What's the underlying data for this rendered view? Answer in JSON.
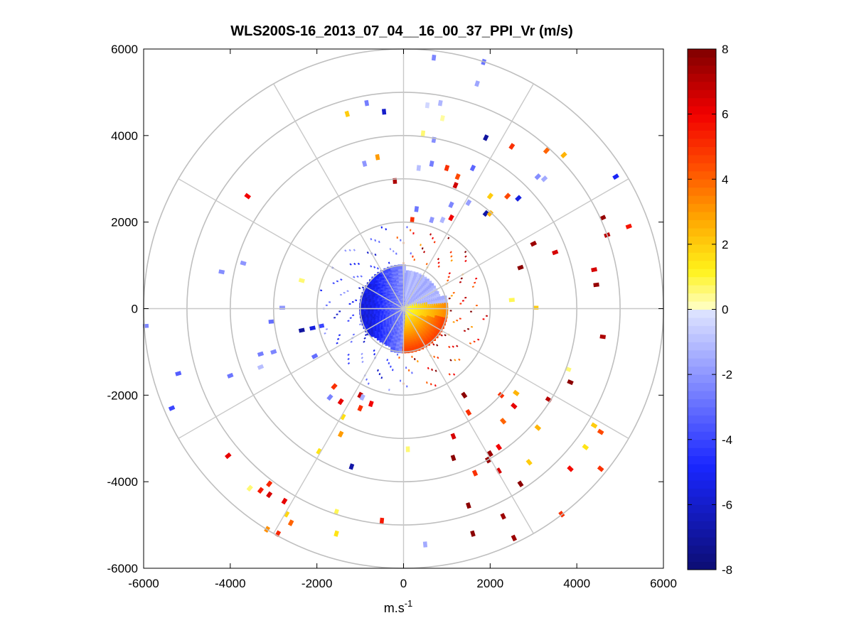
{
  "chart_data": {
    "type": "polar-ppi",
    "title": "WLS200S-16_2013_07_04__16_00_37_PPI_Vr (m/s)",
    "xlabel": "m.s",
    "xlabel_superscript": "-1",
    "xlim": [
      -6000,
      6000
    ],
    "ylim": [
      -6000,
      6000
    ],
    "xticks": [
      -6000,
      -4000,
      -2000,
      0,
      2000,
      4000,
      6000
    ],
    "yticks": [
      -6000,
      -4000,
      -2000,
      0,
      2000,
      4000,
      6000
    ],
    "xtick_labels": [
      "-6000",
      "-4000",
      "-2000",
      "0",
      "2000",
      "4000",
      "6000"
    ],
    "ytick_labels": [
      "-6000",
      "-4000",
      "-2000",
      "0",
      "2000",
      "4000",
      "6000"
    ],
    "range_rings": [
      1000,
      2000,
      3000,
      4000,
      5000,
      6000
    ],
    "spoke_angles_deg": [
      0,
      30,
      60,
      90,
      120,
      150,
      180,
      210,
      240,
      270,
      300,
      330
    ],
    "colorbar": {
      "min": -8,
      "max": 8,
      "ticks": [
        -8,
        -6,
        -4,
        -2,
        0,
        2,
        4,
        6,
        8
      ],
      "tick_labels": [
        "-8",
        "-6",
        "-4",
        "-2",
        "0",
        "2",
        "4",
        "6",
        "8"
      ]
    },
    "segments": [
      {
        "x": 700,
        "y": 5800,
        "v": -2.4
      },
      {
        "x": 1850,
        "y": 5700,
        "v": -2.8
      },
      {
        "x": 1700,
        "y": 5200,
        "v": -1.6
      },
      {
        "x": 850,
        "y": 4750,
        "v": -1.2
      },
      {
        "x": 550,
        "y": 4700,
        "v": -0.4
      },
      {
        "x": 900,
        "y": 4400,
        "v": 0.3
      },
      {
        "x": 450,
        "y": 4050,
        "v": 0.6
      },
      {
        "x": 700,
        "y": 3900,
        "v": -2.2
      },
      {
        "x": 1900,
        "y": 3950,
        "v": -7.0
      },
      {
        "x": 2500,
        "y": 3750,
        "v": 5.0
      },
      {
        "x": 3300,
        "y": 3650,
        "v": 4.0
      },
      {
        "x": 3700,
        "y": 3550,
        "v": 2.5
      },
      {
        "x": 4900,
        "y": 3050,
        "v": -5.0
      },
      {
        "x": 3100,
        "y": 3050,
        "v": -2.2
      },
      {
        "x": 3250,
        "y": 3000,
        "v": -1.5
      },
      {
        "x": 650,
        "y": 3350,
        "v": -2.6
      },
      {
        "x": 350,
        "y": 3250,
        "v": -1.0
      },
      {
        "x": 1000,
        "y": 3250,
        "v": 5.0
      },
      {
        "x": 1600,
        "y": 3250,
        "v": -3.2
      },
      {
        "x": 1250,
        "y": 3050,
        "v": 4.5
      },
      {
        "x": 1200,
        "y": 2850,
        "v": 6.6
      },
      {
        "x": 2000,
        "y": 2600,
        "v": 2.0
      },
      {
        "x": 2400,
        "y": 2600,
        "v": 4.5
      },
      {
        "x": 2650,
        "y": 2550,
        "v": -5.5
      },
      {
        "x": 1500,
        "y": 2450,
        "v": -1.8
      },
      {
        "x": 1900,
        "y": 2200,
        "v": -6.8
      },
      {
        "x": 2000,
        "y": 2200,
        "v": 2.5
      },
      {
        "x": 1100,
        "y": 2100,
        "v": 6.0
      },
      {
        "x": 650,
        "y": 2050,
        "v": -2.0
      },
      {
        "x": 300,
        "y": 2300,
        "v": -2.8
      },
      {
        "x": 200,
        "y": 2050,
        "v": 5.0
      },
      {
        "x": 900,
        "y": 2050,
        "v": -1.2
      },
      {
        "x": 1100,
        "y": 2400,
        "v": -2.4
      },
      {
        "x": -200,
        "y": 2950,
        "v": 7.2
      },
      {
        "x": -600,
        "y": 3500,
        "v": 3.0
      },
      {
        "x": -1300,
        "y": 4500,
        "v": 2.0
      },
      {
        "x": -850,
        "y": 4750,
        "v": -2.6
      },
      {
        "x": -450,
        "y": 4550,
        "v": -6.0
      },
      {
        "x": -900,
        "y": 3350,
        "v": -2.0
      },
      {
        "x": -3600,
        "y": 2600,
        "v": 6.0
      },
      {
        "x": 4600,
        "y": 2100,
        "v": 7.6
      },
      {
        "x": 5200,
        "y": 1900,
        "v": 5.6
      },
      {
        "x": 4700,
        "y": 1700,
        "v": 7.0
      },
      {
        "x": 3000,
        "y": 1500,
        "v": 7.5
      },
      {
        "x": 3500,
        "y": 1300,
        "v": 6.5
      },
      {
        "x": 2700,
        "y": 950,
        "v": 7.8
      },
      {
        "x": 4400,
        "y": 900,
        "v": 6.5
      },
      {
        "x": 4450,
        "y": 550,
        "v": 7.6
      },
      {
        "x": 2500,
        "y": 200,
        "v": 0.8
      },
      {
        "x": 3050,
        "y": 20,
        "v": 2.0
      },
      {
        "x": 4600,
        "y": -650,
        "v": 7.2
      },
      {
        "x": 3800,
        "y": -1400,
        "v": 0.6
      },
      {
        "x": 3850,
        "y": -1700,
        "v": 7.8
      },
      {
        "x": 3350,
        "y": -2100,
        "v": 7.0
      },
      {
        "x": 2600,
        "y": -1950,
        "v": 2.5
      },
      {
        "x": 2550,
        "y": -2250,
        "v": 6.2
      },
      {
        "x": 2250,
        "y": -2000,
        "v": 5.0
      },
      {
        "x": 1400,
        "y": -2000,
        "v": 7.8
      },
      {
        "x": 1500,
        "y": -2400,
        "v": 5.0
      },
      {
        "x": 2300,
        "y": -2600,
        "v": 4.0
      },
      {
        "x": 3100,
        "y": -2750,
        "v": 2.5
      },
      {
        "x": 4400,
        "y": -2700,
        "v": 2.0
      },
      {
        "x": 4550,
        "y": -2850,
        "v": 4.5
      },
      {
        "x": 4200,
        "y": -3200,
        "v": 1.5
      },
      {
        "x": 4550,
        "y": -3700,
        "v": 5.0
      },
      {
        "x": 3850,
        "y": -3700,
        "v": 5.8
      },
      {
        "x": 2900,
        "y": -3550,
        "v": 2.0
      },
      {
        "x": 2200,
        "y": -3200,
        "v": 6.0
      },
      {
        "x": 2000,
        "y": -3350,
        "v": 7.5
      },
      {
        "x": 1950,
        "y": -3500,
        "v": 7.6
      },
      {
        "x": 1150,
        "y": -3450,
        "v": 7.8
      },
      {
        "x": 1650,
        "y": -3800,
        "v": 5.0
      },
      {
        "x": 2200,
        "y": -3750,
        "v": 6.5
      },
      {
        "x": 2700,
        "y": -4050,
        "v": 7.8
      },
      {
        "x": 1500,
        "y": -4550,
        "v": 7.8
      },
      {
        "x": 2300,
        "y": -4800,
        "v": 7.5
      },
      {
        "x": 1600,
        "y": -5200,
        "v": 7.8
      },
      {
        "x": 2550,
        "y": -5300,
        "v": 7.5
      },
      {
        "x": 3650,
        "y": -4750,
        "v": 5.0
      },
      {
        "x": 1150,
        "y": -2950,
        "v": 6.5
      },
      {
        "x": 100,
        "y": -3250,
        "v": 0.6
      },
      {
        "x": -1200,
        "y": -3650,
        "v": -6.8
      },
      {
        "x": -1950,
        "y": -3300,
        "v": 1.5
      },
      {
        "x": -1400,
        "y": -2500,
        "v": 1.6
      },
      {
        "x": -1450,
        "y": -2900,
        "v": 3.0
      },
      {
        "x": -1600,
        "y": -1800,
        "v": 5.0
      },
      {
        "x": -1700,
        "y": -2050,
        "v": -2.5
      },
      {
        "x": -1450,
        "y": -2150,
        "v": 6.2
      },
      {
        "x": -1000,
        "y": -2000,
        "v": 6.8
      },
      {
        "x": -1000,
        "y": -2300,
        "v": 5.0
      },
      {
        "x": -950,
        "y": -2050,
        "v": -1.4
      },
      {
        "x": -750,
        "y": -2200,
        "v": 6.0
      },
      {
        "x": -2050,
        "y": -1100,
        "v": -3.0
      },
      {
        "x": -2350,
        "y": -500,
        "v": -7.0
      },
      {
        "x": -2100,
        "y": -450,
        "v": -5.5
      },
      {
        "x": -1900,
        "y": -400,
        "v": -4.0
      },
      {
        "x": -2800,
        "y": 20,
        "v": -2.0
      },
      {
        "x": -3050,
        "y": -300,
        "v": -3.0
      },
      {
        "x": -3000,
        "y": -1000,
        "v": -2.4
      },
      {
        "x": -3300,
        "y": -1050,
        "v": -2.6
      },
      {
        "x": -3300,
        "y": -1350,
        "v": -1.0
      },
      {
        "x": -4000,
        "y": -1550,
        "v": -2.8
      },
      {
        "x": -5200,
        "y": -1500,
        "v": -3.4
      },
      {
        "x": -5350,
        "y": -2300,
        "v": -4.0
      },
      {
        "x": -5950,
        "y": -400,
        "v": -2.4
      },
      {
        "x": -4200,
        "y": 850,
        "v": -2.2
      },
      {
        "x": -3700,
        "y": 1050,
        "v": -2.0
      },
      {
        "x": -2350,
        "y": 650,
        "v": 0.6
      },
      {
        "x": -4050,
        "y": -3400,
        "v": 6.2
      },
      {
        "x": -3550,
        "y": -4150,
        "v": 0.6
      },
      {
        "x": -3300,
        "y": -4200,
        "v": 5.5
      },
      {
        "x": -3100,
        "y": -4300,
        "v": 6.5
      },
      {
        "x": -3100,
        "y": -4050,
        "v": 5.2
      },
      {
        "x": -2750,
        "y": -4450,
        "v": 6.2
      },
      {
        "x": -2700,
        "y": -4750,
        "v": 1.8
      },
      {
        "x": -2600,
        "y": -4950,
        "v": 4.0
      },
      {
        "x": -3150,
        "y": -5100,
        "v": 3.2
      },
      {
        "x": -2900,
        "y": -5200,
        "v": 5.2
      },
      {
        "x": -1550,
        "y": -4700,
        "v": 0.8
      },
      {
        "x": -1550,
        "y": -5200,
        "v": 1.5
      },
      {
        "x": -500,
        "y": -4900,
        "v": 5.5
      },
      {
        "x": 500,
        "y": -5450,
        "v": -1.5
      }
    ]
  }
}
